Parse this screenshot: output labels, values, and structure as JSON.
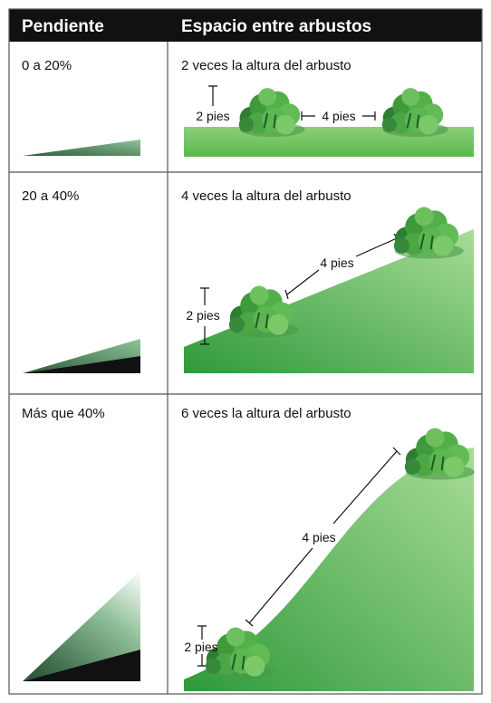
{
  "header": {
    "columns": [
      "Pendiente",
      "Espacio entre arbustos"
    ]
  },
  "table": {
    "rows": [
      {
        "slope": "0 a 20%",
        "spacing": "2 veces la altura del arbusto",
        "height_label": "2 pies",
        "gap_label": "4 pies"
      },
      {
        "slope": "20 a 40%",
        "spacing": "4 veces la altura del arbusto",
        "height_label": "2 pies",
        "gap_label": "4 pies"
      },
      {
        "slope": "Más que 40%",
        "spacing": "6 veces la altura del arbusto",
        "height_label": "2 pies",
        "gap_label": "4 pies"
      }
    ]
  }
}
